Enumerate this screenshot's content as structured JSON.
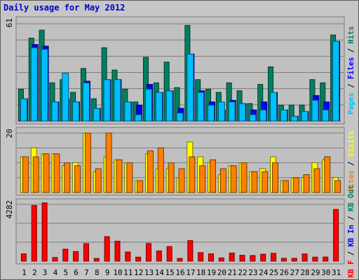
{
  "title": "Daily usage for May 2012",
  "chart_data": [
    {
      "type": "bar",
      "panel": "top",
      "max_label": "61",
      "ylim": [
        0,
        61
      ],
      "ylabel_parts": [
        {
          "text": "Pages",
          "color": "#00c0ff"
        },
        {
          "text": " / ",
          "color": "#000000"
        },
        {
          "text": "Files",
          "color": "#0000ff"
        },
        {
          "text": " / ",
          "color": "#000000"
        },
        {
          "text": "Hits",
          "color": "#008060"
        }
      ],
      "series": [
        {
          "name": "Hits",
          "color": "#008060",
          "values": [
            20,
            52,
            57,
            24,
            26,
            18,
            33,
            14,
            46,
            32,
            20,
            12,
            40,
            24,
            37,
            21,
            60,
            26,
            20,
            18,
            24,
            19,
            11,
            23,
            34,
            10,
            10,
            10,
            26,
            24,
            54
          ]
        },
        {
          "name": "Files",
          "color": "#0000ff",
          "values": [
            14,
            48,
            47,
            12,
            14,
            12,
            25,
            8,
            26,
            26,
            12,
            10,
            23,
            18,
            19,
            8,
            42,
            19,
            12,
            7,
            13,
            11,
            7,
            12,
            18,
            7,
            3,
            6,
            16,
            12,
            50
          ]
        },
        {
          "name": "Pages",
          "color": "#00bfff",
          "values": [
            14,
            46,
            45,
            12,
            30,
            12,
            24,
            8,
            26,
            26,
            12,
            4,
            20,
            18,
            19,
            5,
            42,
            18,
            10,
            12,
            12,
            11,
            4,
            7,
            18,
            7,
            3,
            6,
            13,
            7,
            50
          ]
        }
      ]
    },
    {
      "type": "bar",
      "panel": "middle",
      "max_label": "20",
      "ylim": [
        0,
        20
      ],
      "ylabel_parts": [
        {
          "text": "Sites",
          "color": "#ff8000"
        },
        {
          "text": " / ",
          "color": "#000000"
        },
        {
          "text": "Visits",
          "color": "#ffff00"
        }
      ],
      "series": [
        {
          "name": "Visits",
          "color": "#ffff00",
          "values": [
            12,
            15,
            13,
            13,
            9,
            10,
            20,
            7,
            12,
            11,
            10,
            4,
            13,
            8,
            8,
            5,
            17,
            12,
            10,
            6,
            9,
            10,
            7,
            8,
            12,
            4,
            5,
            5,
            10,
            11,
            5
          ]
        },
        {
          "name": "Sites",
          "color": "#ff8000",
          "values": [
            12,
            12,
            13,
            13,
            10,
            9,
            20,
            8,
            20,
            11,
            10,
            4,
            14,
            15,
            10,
            8,
            12,
            9,
            11,
            8,
            9,
            10,
            7,
            7,
            10,
            4,
            5,
            6,
            8,
            12,
            4
          ]
        }
      ]
    },
    {
      "type": "bar",
      "panel": "bottom",
      "max_label": "4282",
      "ylim": [
        0,
        4282
      ],
      "ylabel_parts": [
        {
          "text": "KB F",
          "color": "#ff0000"
        },
        {
          "text": " / ",
          "color": "#000000"
        },
        {
          "text": "KB In",
          "color": "#0000ff"
        },
        {
          "text": " / ",
          "color": "#000000"
        },
        {
          "text": "KB Out",
          "color": "#008060"
        }
      ],
      "series": [
        {
          "name": "KB F",
          "color": "#ff0000",
          "values": [
            550,
            4200,
            4400,
            270,
            900,
            720,
            1320,
            200,
            1850,
            1500,
            690,
            300,
            1330,
            770,
            1100,
            200,
            1550,
            640,
            550,
            240,
            610,
            440,
            420,
            520,
            590,
            210,
            210,
            540,
            300,
            310,
            3900
          ]
        }
      ]
    }
  ],
  "x_labels": [
    {
      "text": "1",
      "color": "#000000"
    },
    {
      "text": "2",
      "color": "#000000"
    },
    {
      "text": "3",
      "color": "#000000"
    },
    {
      "text": "4",
      "color": "#000000"
    },
    {
      "text": "5",
      "color": "#008060"
    },
    {
      "text": "6",
      "color": "#008060"
    },
    {
      "text": "7",
      "color": "#000000"
    },
    {
      "text": "8",
      "color": "#000000"
    },
    {
      "text": "9",
      "color": "#000000"
    },
    {
      "text": "10",
      "color": "#000000"
    },
    {
      "text": "11",
      "color": "#000000"
    },
    {
      "text": "12",
      "color": "#008060"
    },
    {
      "text": "13",
      "color": "#008060"
    },
    {
      "text": "14",
      "color": "#000000"
    },
    {
      "text": "15",
      "color": "#000000"
    },
    {
      "text": "16",
      "color": "#000000"
    },
    {
      "text": "17",
      "color": "#000000"
    },
    {
      "text": "18",
      "color": "#000000"
    },
    {
      "text": "19",
      "color": "#008060"
    },
    {
      "text": "20",
      "color": "#008060"
    },
    {
      "text": "21",
      "color": "#000000"
    },
    {
      "text": "22",
      "color": "#000000"
    },
    {
      "text": "23",
      "color": "#000000"
    },
    {
      "text": "24",
      "color": "#000000"
    },
    {
      "text": "25",
      "color": "#000000"
    },
    {
      "text": "26",
      "color": "#008060"
    },
    {
      "text": "27",
      "color": "#008060"
    },
    {
      "text": "28",
      "color": "#000000"
    },
    {
      "text": "29",
      "color": "#000000"
    },
    {
      "text": "30",
      "color": "#000000"
    },
    {
      "text": "31",
      "color": "#000000"
    }
  ]
}
